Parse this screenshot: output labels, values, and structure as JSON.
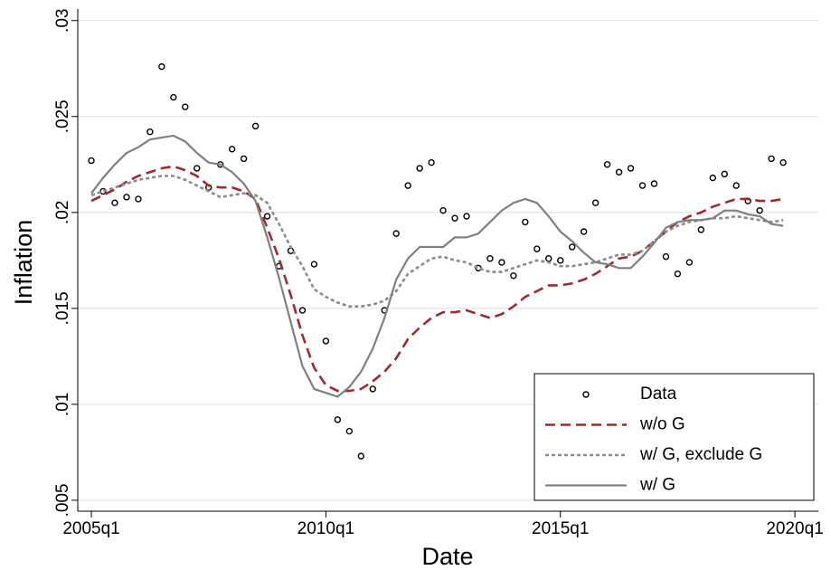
{
  "chart_data": {
    "type": "line",
    "x_label": "Date",
    "y_label": "Inflation",
    "x": [
      2005,
      2005.25,
      2005.5,
      2005.75,
      2006,
      2006.25,
      2006.5,
      2006.75,
      2007,
      2007.25,
      2007.5,
      2007.75,
      2008,
      2008.25,
      2008.5,
      2008.75,
      2009,
      2009.25,
      2009.5,
      2009.75,
      2010,
      2010.25,
      2010.5,
      2010.75,
      2011,
      2011.25,
      2011.5,
      2011.75,
      2012,
      2012.25,
      2012.5,
      2012.75,
      2013,
      2013.25,
      2013.5,
      2013.75,
      2014,
      2014.25,
      2014.5,
      2014.75,
      2015,
      2015.25,
      2015.5,
      2015.75,
      2016,
      2016.25,
      2016.5,
      2016.75,
      2017,
      2017.25,
      2017.5,
      2017.75,
      2018,
      2018.25,
      2018.5,
      2018.75,
      2019,
      2019.25,
      2019.5,
      2019.75
    ],
    "series": [
      {
        "name": "Data",
        "style": "markers",
        "color": "#000000",
        "values": [
          0.0227,
          0.0211,
          0.0205,
          0.0208,
          0.0207,
          0.0242,
          0.0276,
          0.026,
          0.0255,
          0.0223,
          0.0213,
          0.0225,
          0.0233,
          0.0228,
          0.0245,
          0.0198,
          0.0172,
          0.018,
          0.0149,
          0.0173,
          0.0133,
          0.0092,
          0.0086,
          0.0073,
          0.0108,
          0.0149,
          0.0189,
          0.0214,
          0.0223,
          0.0226,
          0.0201,
          0.0197,
          0.0198,
          0.0171,
          0.0176,
          0.0174,
          0.0167,
          0.0195,
          0.0181,
          0.0176,
          0.0175,
          0.0182,
          0.019,
          0.0205,
          0.0225,
          0.0221,
          0.0223,
          0.0214,
          0.0215,
          0.0177,
          0.0168,
          0.0174,
          0.0191,
          0.0218,
          0.022,
          0.0214,
          0.0206,
          0.0201,
          0.0228,
          0.0226
        ]
      },
      {
        "name": "w/o G",
        "style": "dashed",
        "color": "#9b2d30",
        "values": [
          0.0206,
          0.0209,
          0.0212,
          0.0216,
          0.0219,
          0.0221,
          0.0223,
          0.0224,
          0.0222,
          0.0219,
          0.0214,
          0.0213,
          0.0213,
          0.0211,
          0.0207,
          0.0192,
          0.0176,
          0.0157,
          0.0136,
          0.0119,
          0.011,
          0.0107,
          0.0107,
          0.0108,
          0.0112,
          0.0117,
          0.0124,
          0.0134,
          0.014,
          0.0145,
          0.0148,
          0.0148,
          0.0149,
          0.0147,
          0.0145,
          0.0147,
          0.0151,
          0.0156,
          0.0159,
          0.0162,
          0.0162,
          0.0163,
          0.0165,
          0.0168,
          0.0172,
          0.0176,
          0.0177,
          0.018,
          0.0185,
          0.019,
          0.0195,
          0.0198,
          0.02,
          0.0203,
          0.0205,
          0.0207,
          0.0207,
          0.0206,
          0.0206,
          0.0207
        ]
      },
      {
        "name": "w/ G, exclude G",
        "style": "dotted",
        "color": "#8c8c8c",
        "values": [
          0.0209,
          0.0211,
          0.0213,
          0.0215,
          0.0217,
          0.0218,
          0.0219,
          0.0219,
          0.0217,
          0.0214,
          0.0211,
          0.0208,
          0.0209,
          0.021,
          0.0209,
          0.0205,
          0.0194,
          0.0182,
          0.0172,
          0.016,
          0.0156,
          0.0153,
          0.0151,
          0.0151,
          0.0152,
          0.0154,
          0.0159,
          0.0168,
          0.0172,
          0.0176,
          0.0177,
          0.0175,
          0.0174,
          0.0171,
          0.0169,
          0.0169,
          0.0171,
          0.0173,
          0.0175,
          0.0174,
          0.0172,
          0.0172,
          0.0173,
          0.0174,
          0.0176,
          0.0178,
          0.0178,
          0.018,
          0.0185,
          0.019,
          0.0193,
          0.0195,
          0.0196,
          0.0197,
          0.0197,
          0.0198,
          0.0197,
          0.0196,
          0.0195,
          0.0196
        ]
      },
      {
        "name": "w/ G",
        "style": "solid",
        "color": "#808080",
        "values": [
          0.021,
          0.0218,
          0.0225,
          0.0231,
          0.0234,
          0.0238,
          0.0239,
          0.024,
          0.0237,
          0.0231,
          0.0226,
          0.0225,
          0.0221,
          0.0215,
          0.0206,
          0.0187,
          0.0166,
          0.0143,
          0.012,
          0.0108,
          0.0106,
          0.0104,
          0.0109,
          0.0117,
          0.0129,
          0.0145,
          0.0165,
          0.0176,
          0.0182,
          0.0182,
          0.0182,
          0.0187,
          0.0187,
          0.0189,
          0.0195,
          0.0201,
          0.0205,
          0.0207,
          0.0205,
          0.0198,
          0.019,
          0.0185,
          0.0179,
          0.0174,
          0.0173,
          0.0171,
          0.0171,
          0.0177,
          0.0184,
          0.0192,
          0.0195,
          0.0196,
          0.0196,
          0.0197,
          0.0201,
          0.0201,
          0.0199,
          0.0198,
          0.0194,
          0.0193
        ]
      }
    ],
    "xlim": [
      2004.71,
      2020.5
    ],
    "xticks": [
      {
        "value": 2005,
        "label": "2005q1"
      },
      {
        "value": 2010,
        "label": "2010q1"
      },
      {
        "value": 2015,
        "label": "2015q1"
      },
      {
        "value": 2020,
        "label": "2020q1"
      }
    ],
    "ylim": [
      0.00443,
      0.0306
    ],
    "yticks": [
      {
        "value": 0.005,
        "label": ".005"
      },
      {
        "value": 0.01,
        "label": ".01"
      },
      {
        "value": 0.015,
        "label": ".015"
      },
      {
        "value": 0.02,
        "label": ".02"
      },
      {
        "value": 0.025,
        "label": ".025"
      },
      {
        "value": 0.03,
        "label": ".03"
      }
    ],
    "grid": true,
    "legend": "lower right"
  }
}
